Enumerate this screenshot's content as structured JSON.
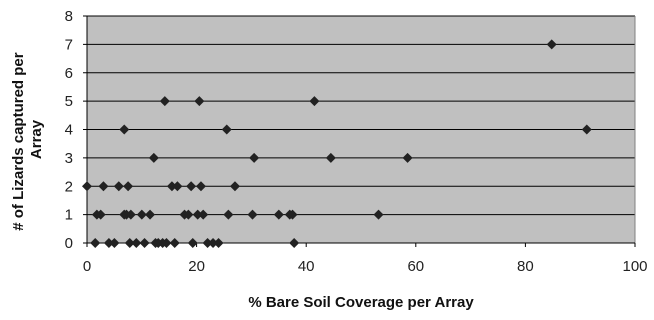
{
  "chart_data": {
    "type": "scatter",
    "title": "",
    "xlabel": "% Bare Soil Coverage per Array",
    "ylabel": "# of Lizards captured per Array",
    "xlim": [
      0,
      100
    ],
    "ylim": [
      0,
      8
    ],
    "x_ticks": [
      0,
      20,
      40,
      60,
      80,
      100
    ],
    "y_ticks": [
      0,
      1,
      2,
      3,
      4,
      5,
      6,
      7,
      8
    ],
    "grid": "horizontal",
    "legend": "none",
    "marker": "diamond",
    "colors": {
      "plot_bg": "#c0c0c0",
      "marker": "#222222",
      "grid": "#000000"
    },
    "points": [
      {
        "x": 0,
        "y": 2
      },
      {
        "x": 1.5,
        "y": 0
      },
      {
        "x": 1.8,
        "y": 1
      },
      {
        "x": 2.5,
        "y": 1
      },
      {
        "x": 3,
        "y": 2
      },
      {
        "x": 4,
        "y": 0
      },
      {
        "x": 5,
        "y": 0
      },
      {
        "x": 5.8,
        "y": 2
      },
      {
        "x": 6.8,
        "y": 4
      },
      {
        "x": 6.8,
        "y": 1
      },
      {
        "x": 7.2,
        "y": 1
      },
      {
        "x": 7.5,
        "y": 2
      },
      {
        "x": 7.8,
        "y": 0
      },
      {
        "x": 8,
        "y": 1
      },
      {
        "x": 9,
        "y": 0
      },
      {
        "x": 10,
        "y": 1
      },
      {
        "x": 10.5,
        "y": 0
      },
      {
        "x": 11.5,
        "y": 1
      },
      {
        "x": 12.2,
        "y": 3
      },
      {
        "x": 12.5,
        "y": 0
      },
      {
        "x": 13,
        "y": 0
      },
      {
        "x": 13.8,
        "y": 0
      },
      {
        "x": 14.2,
        "y": 5
      },
      {
        "x": 14.5,
        "y": 0
      },
      {
        "x": 15.5,
        "y": 2
      },
      {
        "x": 16,
        "y": 0
      },
      {
        "x": 16.5,
        "y": 2
      },
      {
        "x": 17.8,
        "y": 1
      },
      {
        "x": 18.5,
        "y": 1
      },
      {
        "x": 19,
        "y": 2
      },
      {
        "x": 19.3,
        "y": 0
      },
      {
        "x": 20.2,
        "y": 1
      },
      {
        "x": 20.5,
        "y": 5
      },
      {
        "x": 20.8,
        "y": 2
      },
      {
        "x": 21.2,
        "y": 1
      },
      {
        "x": 22,
        "y": 0
      },
      {
        "x": 23,
        "y": 0
      },
      {
        "x": 24,
        "y": 0
      },
      {
        "x": 25.5,
        "y": 4
      },
      {
        "x": 25.8,
        "y": 1
      },
      {
        "x": 27,
        "y": 2
      },
      {
        "x": 30.2,
        "y": 1
      },
      {
        "x": 30.5,
        "y": 3
      },
      {
        "x": 35,
        "y": 1
      },
      {
        "x": 37,
        "y": 1
      },
      {
        "x": 37.5,
        "y": 1
      },
      {
        "x": 37.8,
        "y": 0
      },
      {
        "x": 41.5,
        "y": 5
      },
      {
        "x": 44.5,
        "y": 3
      },
      {
        "x": 53.2,
        "y": 1
      },
      {
        "x": 58.5,
        "y": 3
      },
      {
        "x": 84.8,
        "y": 7
      },
      {
        "x": 91.2,
        "y": 4
      }
    ]
  }
}
